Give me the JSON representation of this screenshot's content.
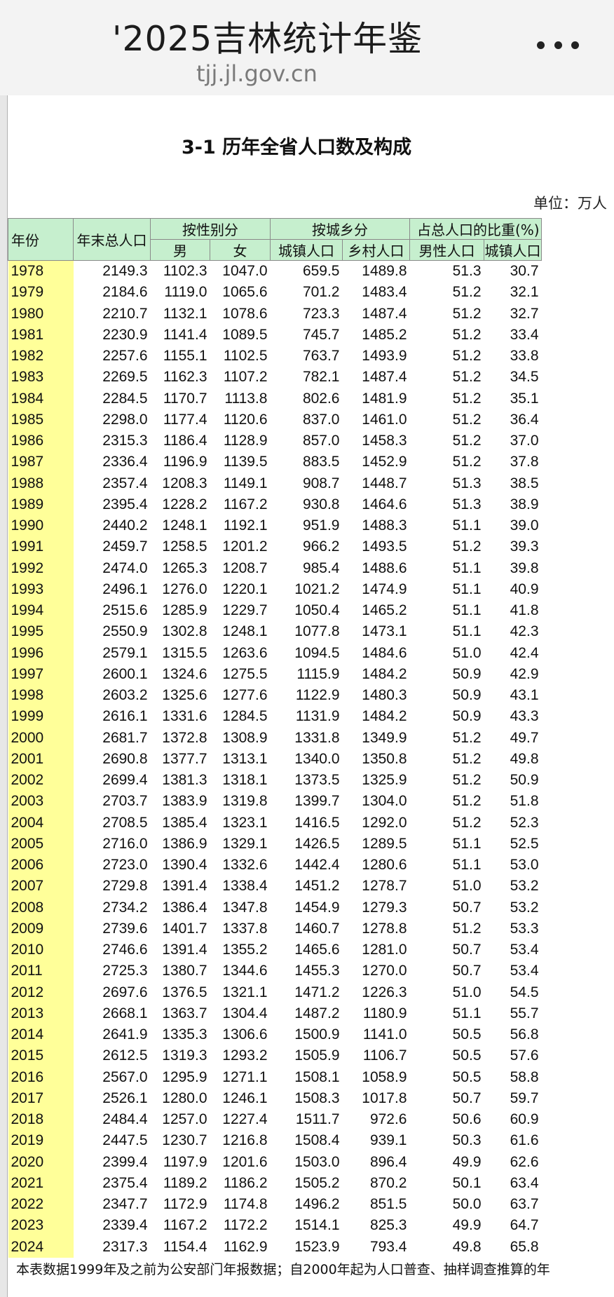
{
  "topbar": {
    "title": "'2025吉林统计年鉴",
    "url": "tjj.jl.gov.cn",
    "more_icon": "more-dots-icon"
  },
  "table": {
    "title": "3-1 历年全省人口数及构成",
    "unit": "单位：万人",
    "headers": {
      "year": "年份",
      "total": "年末总人口",
      "by_sex": "按性别分",
      "male": "男",
      "female": "女",
      "by_area": "按城乡分",
      "urban": "城镇人口",
      "rural": "乡村人口",
      "ratio": "占总人口的比重(%)",
      "male_ratio": "男性人口",
      "urban_ratio": "城镇人口"
    },
    "rows": [
      [
        "1978",
        "2149.3",
        "1102.3",
        "1047.0",
        "659.5",
        "1489.8",
        "51.3",
        "30.7"
      ],
      [
        "1979",
        "2184.6",
        "1119.0",
        "1065.6",
        "701.2",
        "1483.4",
        "51.2",
        "32.1"
      ],
      [
        "1980",
        "2210.7",
        "1132.1",
        "1078.6",
        "723.3",
        "1487.4",
        "51.2",
        "32.7"
      ],
      [
        "1981",
        "2230.9",
        "1141.4",
        "1089.5",
        "745.7",
        "1485.2",
        "51.2",
        "33.4"
      ],
      [
        "1982",
        "2257.6",
        "1155.1",
        "1102.5",
        "763.7",
        "1493.9",
        "51.2",
        "33.8"
      ],
      [
        "1983",
        "2269.5",
        "1162.3",
        "1107.2",
        "782.1",
        "1487.4",
        "51.2",
        "34.5"
      ],
      [
        "1984",
        "2284.5",
        "1170.7",
        "1113.8",
        "802.6",
        "1481.9",
        "51.2",
        "35.1"
      ],
      [
        "1985",
        "2298.0",
        "1177.4",
        "1120.6",
        "837.0",
        "1461.0",
        "51.2",
        "36.4"
      ],
      [
        "1986",
        "2315.3",
        "1186.4",
        "1128.9",
        "857.0",
        "1458.3",
        "51.2",
        "37.0"
      ],
      [
        "1987",
        "2336.4",
        "1196.9",
        "1139.5",
        "883.5",
        "1452.9",
        "51.2",
        "37.8"
      ],
      [
        "1988",
        "2357.4",
        "1208.3",
        "1149.1",
        "908.7",
        "1448.7",
        "51.3",
        "38.5"
      ],
      [
        "1989",
        "2395.4",
        "1228.2",
        "1167.2",
        "930.8",
        "1464.6",
        "51.3",
        "38.9"
      ],
      [
        "1990",
        "2440.2",
        "1248.1",
        "1192.1",
        "951.9",
        "1488.3",
        "51.1",
        "39.0"
      ],
      [
        "1991",
        "2459.7",
        "1258.5",
        "1201.2",
        "966.2",
        "1493.5",
        "51.2",
        "39.3"
      ],
      [
        "1992",
        "2474.0",
        "1265.3",
        "1208.7",
        "985.4",
        "1488.6",
        "51.1",
        "39.8"
      ],
      [
        "1993",
        "2496.1",
        "1276.0",
        "1220.1",
        "1021.2",
        "1474.9",
        "51.1",
        "40.9"
      ],
      [
        "1994",
        "2515.6",
        "1285.9",
        "1229.7",
        "1050.4",
        "1465.2",
        "51.1",
        "41.8"
      ],
      [
        "1995",
        "2550.9",
        "1302.8",
        "1248.1",
        "1077.8",
        "1473.1",
        "51.1",
        "42.3"
      ],
      [
        "1996",
        "2579.1",
        "1315.5",
        "1263.6",
        "1094.5",
        "1484.6",
        "51.0",
        "42.4"
      ],
      [
        "1997",
        "2600.1",
        "1324.6",
        "1275.5",
        "1115.9",
        "1484.2",
        "50.9",
        "42.9"
      ],
      [
        "1998",
        "2603.2",
        "1325.6",
        "1277.6",
        "1122.9",
        "1480.3",
        "50.9",
        "43.1"
      ],
      [
        "1999",
        "2616.1",
        "1331.6",
        "1284.5",
        "1131.9",
        "1484.2",
        "50.9",
        "43.3"
      ],
      [
        "2000",
        "2681.7",
        "1372.8",
        "1308.9",
        "1331.8",
        "1349.9",
        "51.2",
        "49.7"
      ],
      [
        "2001",
        "2690.8",
        "1377.7",
        "1313.1",
        "1340.0",
        "1350.8",
        "51.2",
        "49.8"
      ],
      [
        "2002",
        "2699.4",
        "1381.3",
        "1318.1",
        "1373.5",
        "1325.9",
        "51.2",
        "50.9"
      ],
      [
        "2003",
        "2703.7",
        "1383.9",
        "1319.8",
        "1399.7",
        "1304.0",
        "51.2",
        "51.8"
      ],
      [
        "2004",
        "2708.5",
        "1385.4",
        "1323.1",
        "1416.5",
        "1292.0",
        "51.2",
        "52.3"
      ],
      [
        "2005",
        "2716.0",
        "1386.9",
        "1329.1",
        "1426.5",
        "1289.5",
        "51.1",
        "52.5"
      ],
      [
        "2006",
        "2723.0",
        "1390.4",
        "1332.6",
        "1442.4",
        "1280.6",
        "51.1",
        "53.0"
      ],
      [
        "2007",
        "2729.8",
        "1391.4",
        "1338.4",
        "1451.2",
        "1278.7",
        "51.0",
        "53.2"
      ],
      [
        "2008",
        "2734.2",
        "1386.4",
        "1347.8",
        "1454.9",
        "1279.3",
        "50.7",
        "53.2"
      ],
      [
        "2009",
        "2739.6",
        "1401.7",
        "1337.8",
        "1460.7",
        "1278.8",
        "51.2",
        "53.3"
      ],
      [
        "2010",
        "2746.6",
        "1391.4",
        "1355.2",
        "1465.6",
        "1281.0",
        "50.7",
        "53.4"
      ],
      [
        "2011",
        "2725.3",
        "1380.7",
        "1344.6",
        "1455.3",
        "1270.0",
        "50.7",
        "53.4"
      ],
      [
        "2012",
        "2697.6",
        "1376.5",
        "1321.1",
        "1471.2",
        "1226.3",
        "51.0",
        "54.5"
      ],
      [
        "2013",
        "2668.1",
        "1363.7",
        "1304.4",
        "1487.2",
        "1180.9",
        "51.1",
        "55.7"
      ],
      [
        "2014",
        "2641.9",
        "1335.3",
        "1306.6",
        "1500.9",
        "1141.0",
        "50.5",
        "56.8"
      ],
      [
        "2015",
        "2612.5",
        "1319.3",
        "1293.2",
        "1505.9",
        "1106.7",
        "50.5",
        "57.6"
      ],
      [
        "2016",
        "2567.0",
        "1295.9",
        "1271.1",
        "1508.1",
        "1058.9",
        "50.5",
        "58.8"
      ],
      [
        "2017",
        "2526.1",
        "1280.0",
        "1246.1",
        "1508.3",
        "1017.8",
        "50.7",
        "59.7"
      ],
      [
        "2018",
        "2484.4",
        "1257.0",
        "1227.4",
        "1511.7",
        "972.6",
        "50.6",
        "60.9"
      ],
      [
        "2019",
        "2447.5",
        "1230.7",
        "1216.8",
        "1508.4",
        "939.1",
        "50.3",
        "61.6"
      ],
      [
        "2020",
        "2399.4",
        "1197.9",
        "1201.6",
        "1503.0",
        "896.4",
        "49.9",
        "62.6"
      ],
      [
        "2021",
        "2375.4",
        "1189.2",
        "1186.2",
        "1505.2",
        "870.2",
        "50.1",
        "63.4"
      ],
      [
        "2022",
        "2347.7",
        "1172.9",
        "1174.8",
        "1496.2",
        "851.5",
        "50.0",
        "63.7"
      ],
      [
        "2023",
        "2339.4",
        "1167.2",
        "1172.2",
        "1514.1",
        "825.3",
        "49.9",
        "64.7"
      ],
      [
        "2024",
        "2317.3",
        "1154.4",
        "1162.9",
        "1523.9",
        "793.4",
        "49.8",
        "65.8"
      ]
    ],
    "footnote": "本表数据1999年及之前为公安部门年报数据；自2000年起为人口普查、抽样调查推算的年"
  },
  "colors": {
    "header_bg": "#c6efce",
    "year_col_bg": "#ffff99",
    "topbar_bg": "#f3f3f3"
  }
}
